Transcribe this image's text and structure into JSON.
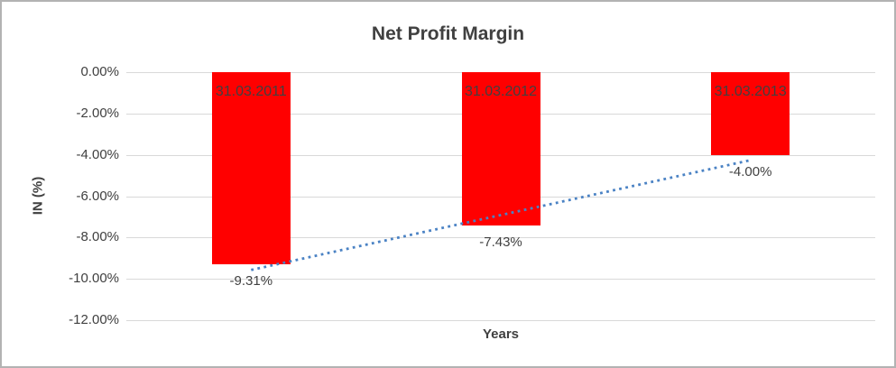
{
  "chart": {
    "title": "Net Profit Margin",
    "y_axis_title": "IN (%)",
    "x_axis_title": "Years"
  },
  "chart_data": {
    "type": "bar",
    "title": "Net Profit Margin",
    "xlabel": "Years",
    "ylabel": "IN (%)",
    "categories": [
      "31.03.2011",
      "31.03.2012",
      "31.03.2013"
    ],
    "values": [
      -9.31,
      -7.43,
      -4.0
    ],
    "value_labels": [
      "-9.31%",
      "-7.43%",
      "-4.00%"
    ],
    "category_label_position": "inside-top",
    "value_label_position": "outside-end",
    "y_ticks": [
      {
        "value": 0,
        "label": "0.00%"
      },
      {
        "value": -2,
        "label": "-2.00%"
      },
      {
        "value": -4,
        "label": "-4.00%"
      },
      {
        "value": -6,
        "label": "-6.00%"
      },
      {
        "value": -8,
        "label": "-8.00%"
      },
      {
        "value": -10,
        "label": "-10.00%"
      },
      {
        "value": -12,
        "label": "-12.00%"
      }
    ],
    "ylim": [
      -12,
      0
    ],
    "grid": true,
    "legend": "none",
    "colors": {
      "bar": "#ff0000",
      "gridline": "#d9d9d9",
      "text": "#404040",
      "category_label": "#404040",
      "value_label": "#404040",
      "trendline": "#4a82c4"
    },
    "trendline": {
      "type": "linear",
      "style": "dotted"
    }
  }
}
